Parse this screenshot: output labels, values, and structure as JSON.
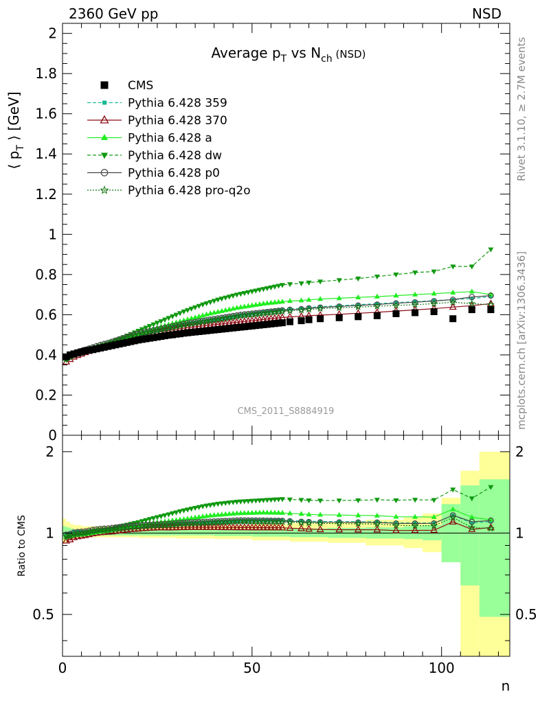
{
  "header": {
    "left": "2360 GeV pp",
    "right": "NSD"
  },
  "side_text": {
    "rivet": "Rivet 3.1.10, ≥ 2.7M events",
    "mcplots": "mcplots.cern.ch [arXiv:1306.3436]"
  },
  "chart_data": {
    "type": "line",
    "title": "Average p_T vs N_ch (NSD)",
    "analysis": "CMS_2011_S8884919",
    "xlabel": "n",
    "ylabel": "⟨ p_T ⟩ [GeV]",
    "ratio_ylabel": "Ratio to CMS",
    "xlim": [
      0,
      118
    ],
    "ylim": [
      0,
      2.05
    ],
    "ratio_ylim": [
      0.35,
      2.3
    ],
    "x_ticks": [
      0,
      50,
      100
    ],
    "y_ticks": [
      0,
      0.2,
      0.4,
      0.6,
      0.8,
      1,
      1.2,
      1.4,
      1.6,
      1.8,
      2
    ],
    "y_tick_labels": [
      "0",
      "0.2",
      "0.4",
      "0.6",
      "0.8",
      "1",
      "1.2",
      "1.4",
      "1.6",
      "1.8",
      "2"
    ],
    "ratio_ticks": [
      0.5,
      1,
      2
    ],
    "ratio_tick_labels": [
      "0.5",
      "1",
      "2"
    ],
    "legend": [
      {
        "name": "CMS",
        "color": "#000000",
        "marker": "square",
        "line": "none"
      },
      {
        "name": "Pythia 6.428 359",
        "color": "#17b895",
        "marker": "smallsquare",
        "line": "dashed"
      },
      {
        "name": "Pythia 6.428 370",
        "color": "#8b0a14",
        "marker": "open-triangle",
        "line": "solid"
      },
      {
        "name": "Pythia 6.428 a",
        "color": "#22ee22",
        "marker": "triangle",
        "line": "solid"
      },
      {
        "name": "Pythia 6.428 dw",
        "color": "#119911",
        "marker": "triangle-down",
        "line": "dashed"
      },
      {
        "name": "Pythia 6.428 p0",
        "color": "#444444",
        "marker": "open-circle",
        "line": "solid"
      },
      {
        "name": "Pythia 6.428 pro-q2o",
        "color": "#117711",
        "marker": "open-star",
        "line": "dotted"
      }
    ],
    "x_points": [
      1,
      2,
      3,
      4,
      5,
      6,
      7,
      8,
      9,
      10,
      11,
      12,
      13,
      14,
      15,
      16,
      17,
      18,
      19,
      20,
      21,
      22,
      23,
      24,
      25,
      26,
      27,
      28,
      29,
      30,
      31,
      32,
      33,
      34,
      35,
      36,
      37,
      38,
      39,
      40,
      41,
      42,
      43,
      44,
      45,
      46,
      47,
      48,
      49,
      50,
      51,
      52,
      53,
      54,
      55,
      56,
      57,
      58,
      60,
      63,
      65,
      68,
      73,
      78,
      83,
      88,
      93,
      98,
      103,
      108,
      113
    ],
    "data": {
      "CMS": [
        0.39,
        0.4,
        0.405,
        0.41,
        0.415,
        0.42,
        0.423,
        0.426,
        0.43,
        0.434,
        0.438,
        0.442,
        0.446,
        0.45,
        0.454,
        0.458,
        0.462,
        0.466,
        0.47,
        0.474,
        0.477,
        0.48,
        0.483,
        0.486,
        0.489,
        0.492,
        0.495,
        0.498,
        0.5,
        0.503,
        0.505,
        0.508,
        0.51,
        0.512,
        0.514,
        0.516,
        0.518,
        0.52,
        0.522,
        0.524,
        0.526,
        0.528,
        0.53,
        0.532,
        0.534,
        0.536,
        0.538,
        0.54,
        0.542,
        0.544,
        0.546,
        0.548,
        0.55,
        0.552,
        0.554,
        0.556,
        0.558,
        0.56,
        0.565,
        0.57,
        0.575,
        0.58,
        0.585,
        0.59,
        0.595,
        0.605,
        0.61,
        0.615,
        0.58,
        0.625,
        0.625
      ],
      "Pythia 6.428 359": [
        0.385,
        0.4,
        0.41,
        0.415,
        0.42,
        0.425,
        0.43,
        0.435,
        0.44,
        0.445,
        0.45,
        0.455,
        0.46,
        0.467,
        0.473,
        0.479,
        0.485,
        0.491,
        0.497,
        0.502,
        0.507,
        0.512,
        0.516,
        0.52,
        0.524,
        0.528,
        0.532,
        0.536,
        0.54,
        0.544,
        0.548,
        0.552,
        0.556,
        0.559,
        0.562,
        0.565,
        0.568,
        0.571,
        0.574,
        0.577,
        0.58,
        0.583,
        0.586,
        0.589,
        0.592,
        0.595,
        0.598,
        0.601,
        0.603,
        0.606,
        0.608,
        0.61,
        0.613,
        0.615,
        0.617,
        0.62,
        0.622,
        0.624,
        0.628,
        0.632,
        0.636,
        0.64,
        0.645,
        0.65,
        0.655,
        0.66,
        0.665,
        0.67,
        0.675,
        0.68,
        0.69
      ],
      "Pythia 6.428 370": [
        0.365,
        0.378,
        0.39,
        0.398,
        0.405,
        0.412,
        0.418,
        0.424,
        0.43,
        0.436,
        0.441,
        0.446,
        0.451,
        0.457,
        0.463,
        0.469,
        0.475,
        0.481,
        0.486,
        0.491,
        0.496,
        0.5,
        0.504,
        0.508,
        0.512,
        0.515,
        0.518,
        0.521,
        0.524,
        0.527,
        0.53,
        0.533,
        0.536,
        0.538,
        0.54,
        0.542,
        0.544,
        0.546,
        0.548,
        0.55,
        0.552,
        0.554,
        0.556,
        0.558,
        0.56,
        0.562,
        0.564,
        0.566,
        0.568,
        0.57,
        0.572,
        0.574,
        0.576,
        0.578,
        0.58,
        0.582,
        0.584,
        0.586,
        0.589,
        0.592,
        0.595,
        0.598,
        0.602,
        0.607,
        0.612,
        0.618,
        0.624,
        0.63,
        0.638,
        0.645,
        0.655
      ],
      "Pythia 6.428 a": [
        0.38,
        0.39,
        0.398,
        0.404,
        0.41,
        0.416,
        0.421,
        0.427,
        0.433,
        0.439,
        0.445,
        0.451,
        0.457,
        0.464,
        0.471,
        0.478,
        0.485,
        0.492,
        0.499,
        0.506,
        0.512,
        0.518,
        0.524,
        0.53,
        0.536,
        0.541,
        0.546,
        0.551,
        0.556,
        0.561,
        0.566,
        0.571,
        0.576,
        0.581,
        0.586,
        0.591,
        0.596,
        0.601,
        0.606,
        0.61,
        0.614,
        0.618,
        0.622,
        0.626,
        0.63,
        0.634,
        0.637,
        0.64,
        0.643,
        0.646,
        0.649,
        0.652,
        0.655,
        0.657,
        0.659,
        0.661,
        0.663,
        0.665,
        0.668,
        0.671,
        0.674,
        0.678,
        0.682,
        0.686,
        0.69,
        0.695,
        0.7,
        0.705,
        0.71,
        0.715,
        0.7
      ],
      "Pythia 6.428 dw": [
        0.375,
        0.388,
        0.398,
        0.405,
        0.411,
        0.417,
        0.423,
        0.429,
        0.436,
        0.443,
        0.45,
        0.457,
        0.464,
        0.472,
        0.48,
        0.488,
        0.496,
        0.504,
        0.512,
        0.52,
        0.528,
        0.536,
        0.544,
        0.552,
        0.56,
        0.568,
        0.576,
        0.584,
        0.592,
        0.6,
        0.608,
        0.616,
        0.623,
        0.63,
        0.637,
        0.644,
        0.651,
        0.657,
        0.663,
        0.669,
        0.675,
        0.68,
        0.685,
        0.69,
        0.695,
        0.7,
        0.704,
        0.708,
        0.712,
        0.716,
        0.72,
        0.724,
        0.728,
        0.732,
        0.736,
        0.74,
        0.744,
        0.748,
        0.752,
        0.756,
        0.76,
        0.765,
        0.772,
        0.78,
        0.79,
        0.8,
        0.81,
        0.815,
        0.84,
        0.84,
        0.925
      ],
      "Pythia 6.428 p0": [
        0.385,
        0.397,
        0.407,
        0.414,
        0.42,
        0.426,
        0.432,
        0.438,
        0.444,
        0.45,
        0.455,
        0.46,
        0.466,
        0.472,
        0.478,
        0.484,
        0.49,
        0.496,
        0.501,
        0.506,
        0.511,
        0.515,
        0.519,
        0.523,
        0.527,
        0.531,
        0.535,
        0.539,
        0.543,
        0.547,
        0.551,
        0.555,
        0.558,
        0.561,
        0.564,
        0.567,
        0.57,
        0.573,
        0.576,
        0.579,
        0.582,
        0.585,
        0.588,
        0.591,
        0.594,
        0.597,
        0.6,
        0.602,
        0.604,
        0.606,
        0.608,
        0.61,
        0.612,
        0.614,
        0.616,
        0.618,
        0.62,
        0.622,
        0.625,
        0.628,
        0.632,
        0.636,
        0.641,
        0.646,
        0.651,
        0.657,
        0.662,
        0.668,
        0.675,
        0.688,
        0.695
      ],
      "Pythia 6.428 pro-q2o": [
        0.38,
        0.392,
        0.402,
        0.409,
        0.415,
        0.421,
        0.427,
        0.433,
        0.439,
        0.445,
        0.45,
        0.455,
        0.46,
        0.466,
        0.472,
        0.478,
        0.484,
        0.49,
        0.495,
        0.5,
        0.505,
        0.509,
        0.513,
        0.517,
        0.521,
        0.525,
        0.529,
        0.533,
        0.537,
        0.541,
        0.545,
        0.549,
        0.552,
        0.555,
        0.558,
        0.561,
        0.564,
        0.567,
        0.57,
        0.573,
        0.576,
        0.579,
        0.582,
        0.585,
        0.588,
        0.591,
        0.594,
        0.596,
        0.598,
        0.6,
        0.602,
        0.604,
        0.606,
        0.608,
        0.61,
        0.612,
        0.614,
        0.616,
        0.619,
        0.622,
        0.626,
        0.63,
        0.634,
        0.638,
        0.642,
        0.646,
        0.65,
        0.655,
        0.662,
        0.655,
        0.65
      ]
    },
    "cms_bands": {
      "x_edges": [
        0,
        1,
        2,
        3,
        5,
        10,
        20,
        30,
        40,
        50,
        60,
        70,
        80,
        90,
        95,
        100,
        105,
        110,
        118
      ],
      "ratio_inner": [
        [
          0.95,
          1.06
        ],
        [
          0.96,
          1.05
        ],
        [
          0.97,
          1.04
        ],
        [
          0.975,
          1.03
        ],
        [
          0.98,
          1.025
        ],
        [
          0.98,
          1.025
        ],
        [
          0.98,
          1.025
        ],
        [
          0.98,
          1.03
        ],
        [
          0.975,
          1.03
        ],
        [
          0.97,
          1.035
        ],
        [
          0.965,
          1.04
        ],
        [
          0.96,
          1.045
        ],
        [
          0.955,
          1.05
        ],
        [
          0.95,
          1.06
        ],
        [
          0.94,
          1.07
        ],
        [
          0.78,
          1.28
        ],
        [
          0.64,
          1.5
        ],
        [
          0.49,
          1.58
        ]
      ],
      "ratio_outer": [
        [
          0.92,
          1.13
        ],
        [
          0.94,
          1.1
        ],
        [
          0.95,
          1.08
        ],
        [
          0.96,
          1.07
        ],
        [
          0.965,
          1.06
        ],
        [
          0.965,
          1.06
        ],
        [
          0.96,
          1.06
        ],
        [
          0.955,
          1.065
        ],
        [
          0.95,
          1.07
        ],
        [
          0.94,
          1.08
        ],
        [
          0.93,
          1.09
        ],
        [
          0.92,
          1.1
        ],
        [
          0.9,
          1.12
        ],
        [
          0.88,
          1.14
        ],
        [
          0.85,
          1.18
        ],
        [
          0.78,
          1.35
        ],
        [
          0.3,
          1.7
        ],
        [
          0.3,
          2.0
        ]
      ]
    }
  }
}
